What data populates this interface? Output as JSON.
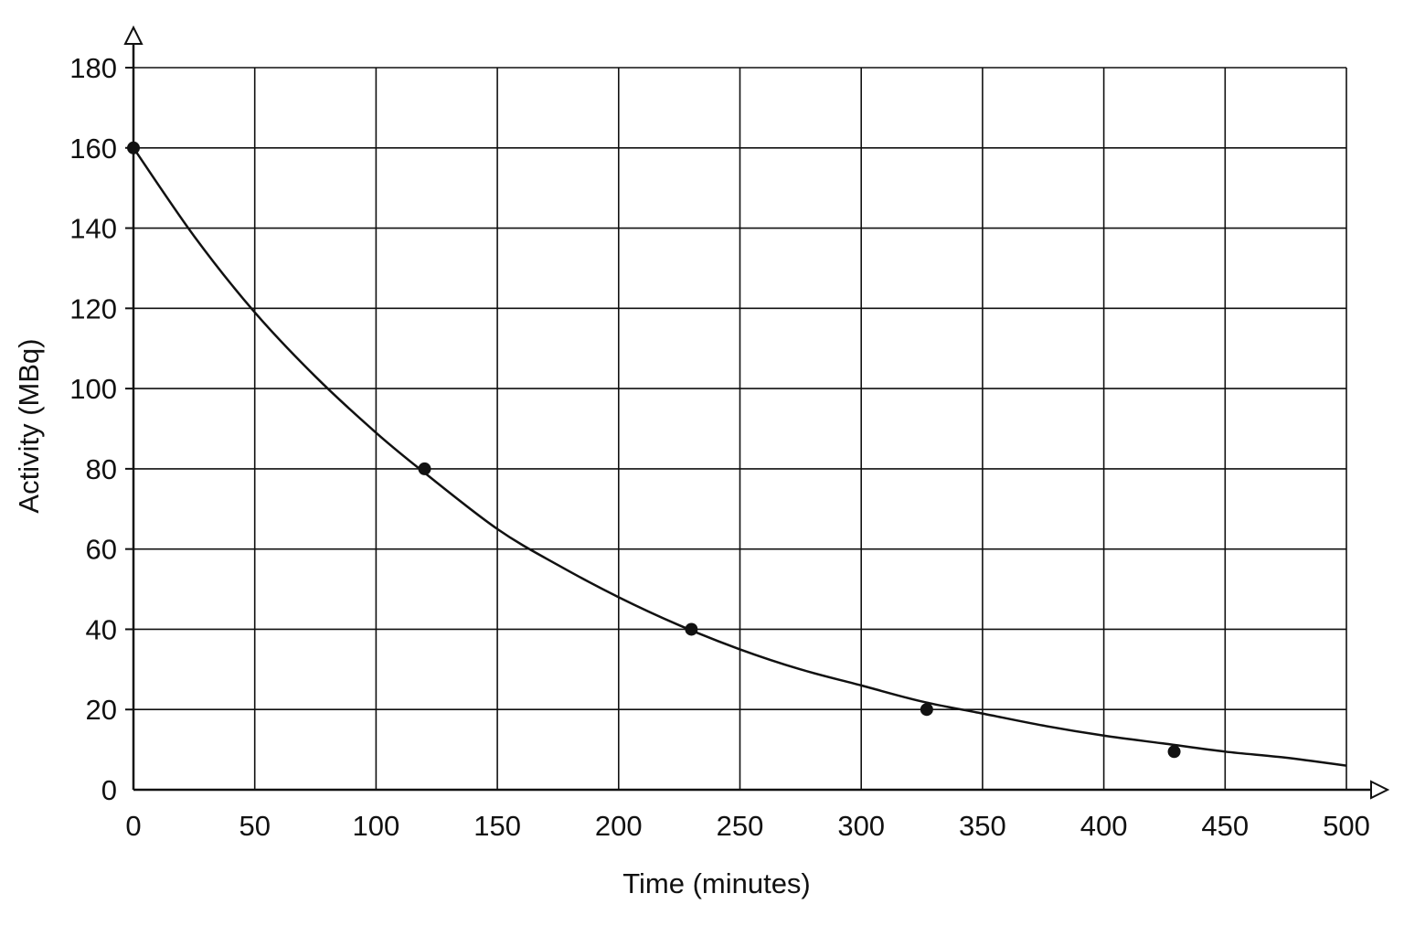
{
  "chart_data": {
    "type": "line",
    "title": "",
    "xlabel": "Time (minutes)",
    "ylabel": "Activity (MBq)",
    "xlim": [
      0,
      500
    ],
    "ylim": [
      0,
      180
    ],
    "xticks": [
      0,
      50,
      100,
      150,
      200,
      250,
      300,
      350,
      400,
      450,
      500
    ],
    "yticks": [
      0,
      20,
      40,
      60,
      80,
      100,
      120,
      140,
      160,
      180
    ],
    "xtick_labels": [
      "0",
      "50",
      "100",
      "150",
      "200",
      "250",
      "300",
      "350",
      "400",
      "450",
      "500"
    ],
    "ytick_labels": [
      "0",
      "20",
      "40",
      "60",
      "80",
      "100",
      "120",
      "140",
      "160",
      "180"
    ],
    "grid": true,
    "legend": "none",
    "series": [
      {
        "kind": "curve",
        "x": [
          0,
          25,
          50,
          75,
          100,
          120,
          150,
          175,
          200,
          225,
          250,
          275,
          300,
          325,
          350,
          375,
          400,
          425,
          450,
          475,
          500
        ],
        "y": [
          160,
          138,
          119,
          103,
          89,
          79,
          65,
          56,
          48,
          41,
          35,
          30,
          26,
          22,
          19,
          16,
          13.5,
          11.5,
          9.5,
          8,
          6
        ]
      },
      {
        "kind": "points",
        "x": [
          0,
          120,
          230,
          327,
          429
        ],
        "y": [
          160,
          80,
          40,
          20,
          9.5
        ]
      }
    ]
  }
}
